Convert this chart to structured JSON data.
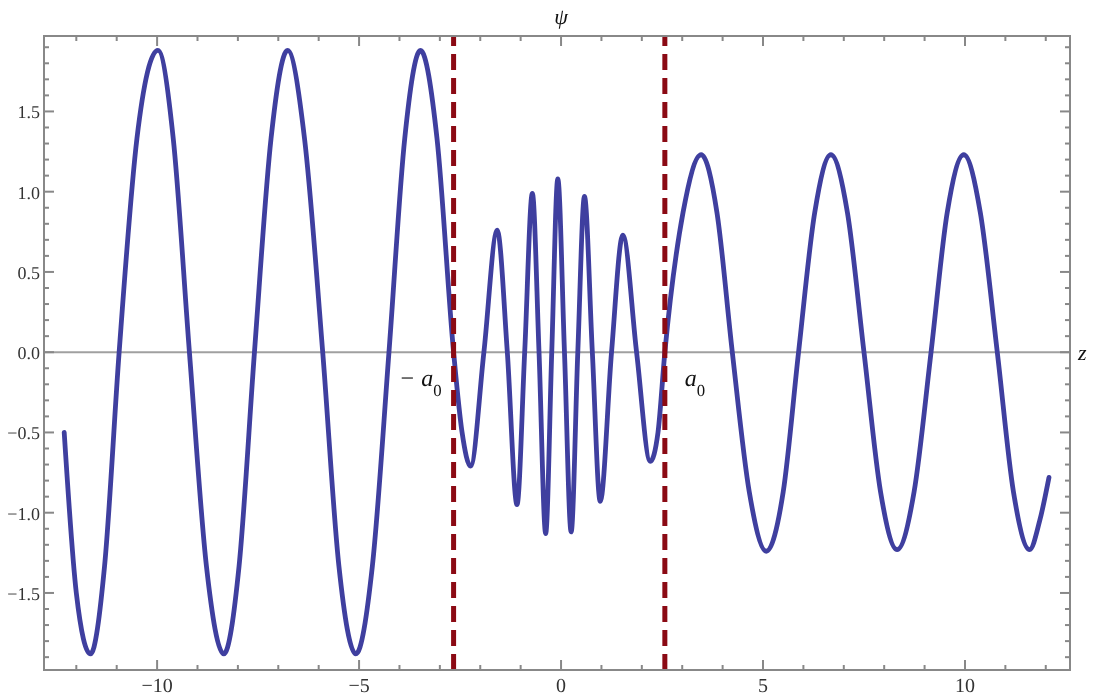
{
  "chart_data": {
    "type": "line",
    "ylabel": "ψ",
    "xlabel": "z",
    "xlim": [
      -12.8,
      12.6
    ],
    "ylim": [
      -1.98,
      1.97
    ],
    "xticks": [
      {
        "value": -12,
        "label": null
      },
      {
        "value": -11,
        "label": null
      },
      {
        "value": -10,
        "label": "−10"
      },
      {
        "value": -9,
        "label": null
      },
      {
        "value": -8,
        "label": null
      },
      {
        "value": -7,
        "label": null
      },
      {
        "value": -6,
        "label": null
      },
      {
        "value": -5,
        "label": "−5"
      },
      {
        "value": -4,
        "label": null
      },
      {
        "value": -3,
        "label": null
      },
      {
        "value": -2,
        "label": null
      },
      {
        "value": -1,
        "label": null
      },
      0,
      {
        "value": 1,
        "label": null
      },
      {
        "value": 2,
        "label": null
      },
      {
        "value": 3,
        "label": null
      },
      {
        "value": 4,
        "label": null
      },
      5,
      {
        "value": 6,
        "label": null
      },
      {
        "value": 7,
        "label": null
      },
      {
        "value": 8,
        "label": null
      },
      {
        "value": 9,
        "label": null
      },
      10,
      {
        "value": 11,
        "label": null
      },
      {
        "value": 12,
        "label": null
      }
    ],
    "yticks": [
      {
        "value": -1.9,
        "label": null
      },
      {
        "value": -1.8,
        "label": null
      },
      {
        "value": -1.7,
        "label": null
      },
      {
        "value": -1.6,
        "label": null
      },
      {
        "value": -1.5,
        "label": "−1.5"
      },
      {
        "value": -1.4,
        "label": null
      },
      {
        "value": -1.3,
        "label": null
      },
      {
        "value": -1.2,
        "label": null
      },
      {
        "value": -1.1,
        "label": null
      },
      {
        "value": -1.0,
        "label": "−1.0"
      },
      {
        "value": -0.9,
        "label": null
      },
      {
        "value": -0.8,
        "label": null
      },
      {
        "value": -0.7,
        "label": null
      },
      {
        "value": -0.6,
        "label": null
      },
      {
        "value": -0.5,
        "label": "−0.5"
      },
      {
        "value": -0.4,
        "label": null
      },
      {
        "value": -0.3,
        "label": null
      },
      {
        "value": -0.2,
        "label": null
      },
      {
        "value": -0.1,
        "label": null
      },
      {
        "value": 0,
        "label": "0.0"
      },
      {
        "value": 0.1,
        "label": null
      },
      {
        "value": 0.2,
        "label": null
      },
      {
        "value": 0.3,
        "label": null
      },
      {
        "value": 0.4,
        "label": null
      },
      {
        "value": 0.5,
        "label": "0.5"
      },
      {
        "value": 0.6,
        "label": null
      },
      {
        "value": 0.7,
        "label": null
      },
      {
        "value": 0.8,
        "label": null
      },
      {
        "value": 0.9,
        "label": null
      },
      {
        "value": 1.0,
        "label": "1.0"
      },
      {
        "value": 1.1,
        "label": null
      },
      {
        "value": 1.2,
        "label": null
      },
      {
        "value": 1.3,
        "label": null
      },
      {
        "value": 1.4,
        "label": null
      },
      {
        "value": 1.5,
        "label": "1.5"
      },
      {
        "value": 1.6,
        "label": null
      },
      {
        "value": 1.7,
        "label": null
      },
      {
        "value": 1.8,
        "label": null
      },
      {
        "value": 1.9,
        "label": null
      }
    ],
    "grid": false,
    "marker": "none",
    "line_style": "solid",
    "ref_lines": [
      {
        "axis": "y",
        "value": 0,
        "color": "#a0a0a0",
        "line_style": "solid"
      },
      {
        "axis": "x",
        "value": -2.66,
        "label": "− a$_{0}$",
        "color": "#8b0a14",
        "line_style": "dashed"
      },
      {
        "axis": "x",
        "value": 2.57,
        "label": "a$_{0}$",
        "color": "#8b0a14",
        "line_style": "dashed"
      }
    ],
    "series": [
      {
        "color": "#3f3f9f",
        "x": [
          -12.3,
          -12.0,
          -11.65,
          -11.3,
          -10.94,
          -10.5,
          -9.98,
          -9.6,
          -9.2,
          -8.78,
          -8.35,
          -7.97,
          -7.59,
          -7.18,
          -6.77,
          -6.35,
          -5.9,
          -5.5,
          -5.08,
          -4.67,
          -4.26,
          -3.87,
          -3.48,
          -3.07,
          -2.66,
          -2.45,
          -2.24,
          -1.91,
          -1.58,
          -1.33,
          -1.09,
          -0.9,
          -0.71,
          -0.545,
          -0.38,
          -0.23,
          -0.08,
          0.085,
          0.25,
          0.415,
          0.58,
          0.775,
          0.97,
          1.25,
          1.53,
          1.87,
          2.21,
          2.4,
          2.57,
          3.02,
          3.47,
          3.86,
          4.24,
          4.66,
          5.08,
          5.5,
          5.88,
          6.28,
          6.68,
          7.09,
          7.5,
          7.91,
          8.32,
          8.74,
          9.16,
          9.56,
          9.97,
          10.38,
          10.8,
          11.2,
          11.6,
          11.85,
          12.08
        ],
        "values": [
          -0.5,
          -1.5,
          -1.88,
          -1.33,
          0,
          1.33,
          1.88,
          1.33,
          0,
          -1.33,
          -1.88,
          -1.33,
          0,
          1.33,
          1.88,
          1.33,
          0,
          -1.33,
          -1.88,
          -1.33,
          0,
          1.33,
          1.88,
          1.33,
          0,
          -0.5,
          -0.71,
          0,
          0.76,
          0,
          -0.95,
          0,
          0.99,
          0,
          -1.13,
          0,
          1.08,
          0,
          -1.12,
          0,
          0.97,
          0,
          -0.93,
          0,
          0.73,
          0,
          -0.68,
          -0.5,
          0,
          0.87,
          1.23,
          0.87,
          0,
          -0.87,
          -1.24,
          -0.87,
          0,
          0.87,
          1.23,
          0.87,
          0,
          -0.87,
          -1.23,
          -0.87,
          0,
          0.87,
          1.23,
          0.87,
          0,
          -0.87,
          -1.23,
          -1.05,
          -0.78
        ]
      }
    ]
  }
}
